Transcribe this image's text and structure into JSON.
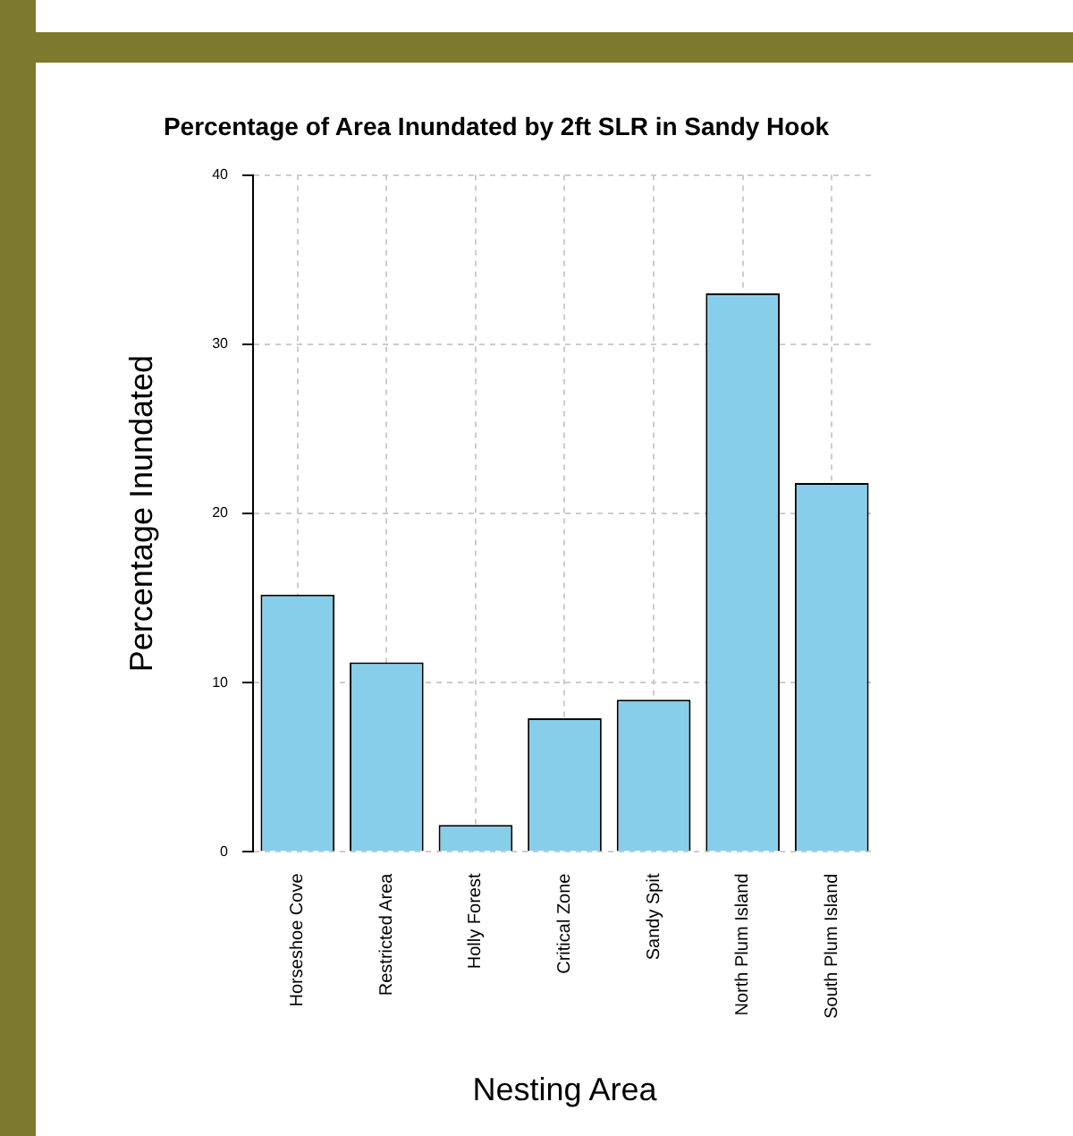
{
  "chart_data": {
    "type": "bar",
    "title": "Percentage of Area Inundated by 2ft SLR in Sandy Hook",
    "xlabel": "Nesting Area",
    "ylabel": "Percentage Inundated",
    "categories": [
      "Horseshoe Cove",
      "Restricted Area",
      "Holly Forest",
      "Critical Zone",
      "Sandy Spit",
      "North Plum Island",
      "South Plum Island"
    ],
    "values": [
      15.2,
      11.2,
      1.6,
      7.9,
      9.0,
      33.0,
      21.8
    ],
    "color": "#87ceeb",
    "ylim": [
      0,
      40
    ],
    "yticks": [
      0,
      10,
      20,
      30,
      40
    ],
    "grid": true
  }
}
